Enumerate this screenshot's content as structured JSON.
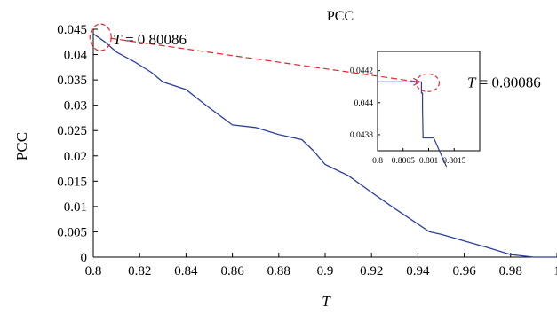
{
  "chart_data": {
    "type": "line",
    "title": "PCC",
    "xlabel": "T",
    "ylabel": "PCC",
    "xlim": [
      0.8,
      1.0
    ],
    "ylim": [
      0,
      0.045
    ],
    "grid": false,
    "x_ticks": [
      "0.8",
      "0.82",
      "0.84",
      "0.86",
      "0.88",
      "0.9",
      "0.92",
      "0.94",
      "0.96",
      "0.98",
      "1"
    ],
    "y_ticks": [
      "0",
      "0.005",
      "0.01",
      "0.015",
      "0.02",
      "0.025",
      "0.03",
      "0.035",
      "0.04",
      "0.045"
    ],
    "series": [
      {
        "color": "#2b3f9e",
        "x": [
          0.8,
          0.805,
          0.81,
          0.818,
          0.825,
          0.83,
          0.84,
          0.85,
          0.86,
          0.87,
          0.88,
          0.89,
          0.895,
          0.9,
          0.91,
          0.92,
          0.93,
          0.945,
          0.95,
          0.96,
          0.97,
          0.98,
          0.99,
          1.0
        ],
        "y": [
          0.0441,
          0.0425,
          0.0405,
          0.0385,
          0.0365,
          0.0346,
          0.0331,
          0.0295,
          0.0261,
          0.0256,
          0.0242,
          0.0232,
          0.021,
          0.0183,
          0.0161,
          0.0128,
          0.0096,
          0.005,
          0.0045,
          0.0032,
          0.0019,
          0.0005,
          0.0,
          0.0
        ]
      }
    ],
    "annotations": [
      {
        "text": "= 0.80086",
        "italic_prefix": "T",
        "x": 0.80086,
        "y": 0.0441
      }
    ],
    "inset": {
      "xlim": [
        0.8,
        0.802
      ],
      "ylim": [
        0.0437,
        0.04432
      ],
      "x_ticks": [
        "0.8",
        "0.8005",
        "0.801",
        "0.8015"
      ],
      "y_ticks": [
        "0.0438",
        "0.044",
        "0.0442"
      ],
      "series": [
        {
          "color": "#2b3f9e",
          "x": [
            0.8,
            0.80082,
            0.80086,
            0.80086,
            0.80088,
            0.80088,
            0.80089,
            0.8011,
            0.80135
          ],
          "y": [
            0.04413,
            0.04413,
            0.04413,
            0.04406,
            0.04406,
            0.04396,
            0.04378,
            0.04378,
            0.0436
          ]
        }
      ],
      "annotation": {
        "text": "= 0.80086",
        "italic_prefix": "T",
        "x": 0.80086
      }
    },
    "highlight_color": "#e8262b"
  }
}
